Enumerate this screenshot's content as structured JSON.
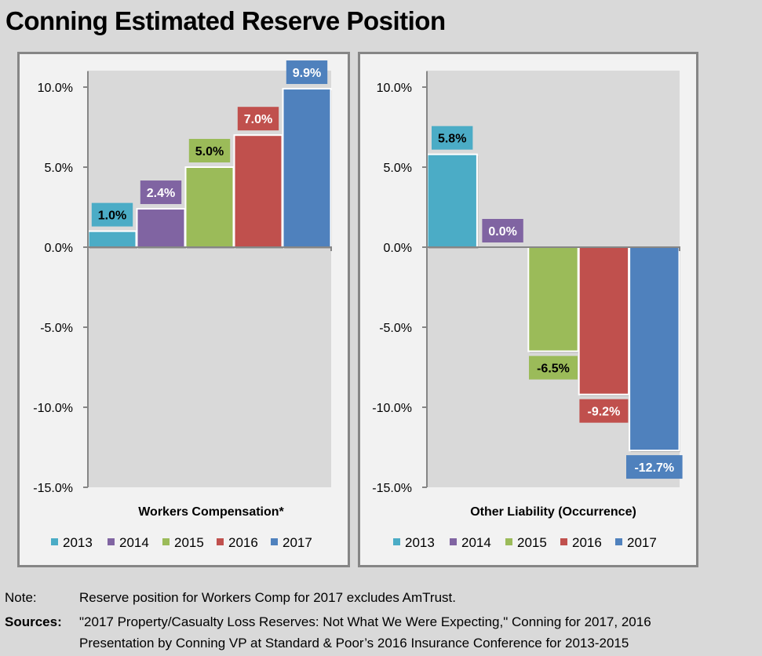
{
  "title": "Conning Estimated Reserve Position",
  "colors": {
    "2013": "#4bacc6",
    "2014": "#8064a2",
    "2015": "#9bbb59",
    "2016": "#c0504d",
    "2017": "#4f81bd",
    "plot_bg": "#d9d9d9",
    "panel_bg": "#f2f2f2",
    "axis": "#868686"
  },
  "chart_data": [
    {
      "type": "bar",
      "title": "",
      "xlabel": "Workers Compensation*",
      "ylabel": "",
      "categories": [
        "Workers Compensation*"
      ],
      "series": [
        {
          "name": "2013",
          "values": [
            1.0
          ],
          "label": "1.0%",
          "label_color": "#000000"
        },
        {
          "name": "2014",
          "values": [
            2.4
          ],
          "label": "2.4%",
          "label_color": "#ffffff"
        },
        {
          "name": "2015",
          "values": [
            5.0
          ],
          "label": "5.0%",
          "label_color": "#000000"
        },
        {
          "name": "2016",
          "values": [
            7.0
          ],
          "label": "7.0%",
          "label_color": "#ffffff"
        },
        {
          "name": "2017",
          "values": [
            9.9
          ],
          "label": "9.9%",
          "label_color": "#ffffff"
        }
      ],
      "ylim": [
        -15,
        11
      ],
      "yticks": [
        10,
        5,
        0,
        -5,
        -10,
        -15
      ],
      "ytick_labels": [
        "10.0%",
        "5.0%",
        "0.0%",
        "-5.0%",
        "-10.0%",
        "-15.0%"
      ],
      "grid": false,
      "legend": [
        "2013",
        "2014",
        "2015",
        "2016",
        "2017"
      ],
      "legend_position": "bottom"
    },
    {
      "type": "bar",
      "title": "",
      "xlabel": "Other Liability (Occurrence)",
      "ylabel": "",
      "categories": [
        "Other Liability (Occurrence)"
      ],
      "series": [
        {
          "name": "2013",
          "values": [
            5.8
          ],
          "label": "5.8%",
          "label_color": "#000000"
        },
        {
          "name": "2014",
          "values": [
            0.0
          ],
          "label": "0.0%",
          "label_color": "#ffffff"
        },
        {
          "name": "2015",
          "values": [
            -6.5
          ],
          "label": "-6.5%",
          "label_color": "#000000"
        },
        {
          "name": "2016",
          "values": [
            -9.2
          ],
          "label": "-9.2%",
          "label_color": "#ffffff"
        },
        {
          "name": "2017",
          "values": [
            -12.7
          ],
          "label": "-12.7%",
          "label_color": "#ffffff"
        }
      ],
      "ylim": [
        -15,
        11
      ],
      "yticks": [
        10,
        5,
        0,
        -5,
        -10,
        -15
      ],
      "ytick_labels": [
        "10.0%",
        "5.0%",
        "0.0%",
        "-5.0%",
        "-10.0%",
        "-15.0%"
      ],
      "grid": false,
      "legend": [
        "2013",
        "2014",
        "2015",
        "2016",
        "2017"
      ],
      "legend_position": "bottom"
    }
  ],
  "footer": {
    "note_label": "Note:",
    "note_text": "Reserve position for Workers Comp for 2017 excludes AmTrust.",
    "sources_label": "Sources:",
    "sources_line1": "\"2017 Property/Casualty Loss Reserves: Not What We Were Expecting,\" Conning for 2017, 2016",
    "sources_line2": "Presentation by Conning VP at Standard & Poor’s 2016 Insurance Conference for 2013-2015"
  }
}
